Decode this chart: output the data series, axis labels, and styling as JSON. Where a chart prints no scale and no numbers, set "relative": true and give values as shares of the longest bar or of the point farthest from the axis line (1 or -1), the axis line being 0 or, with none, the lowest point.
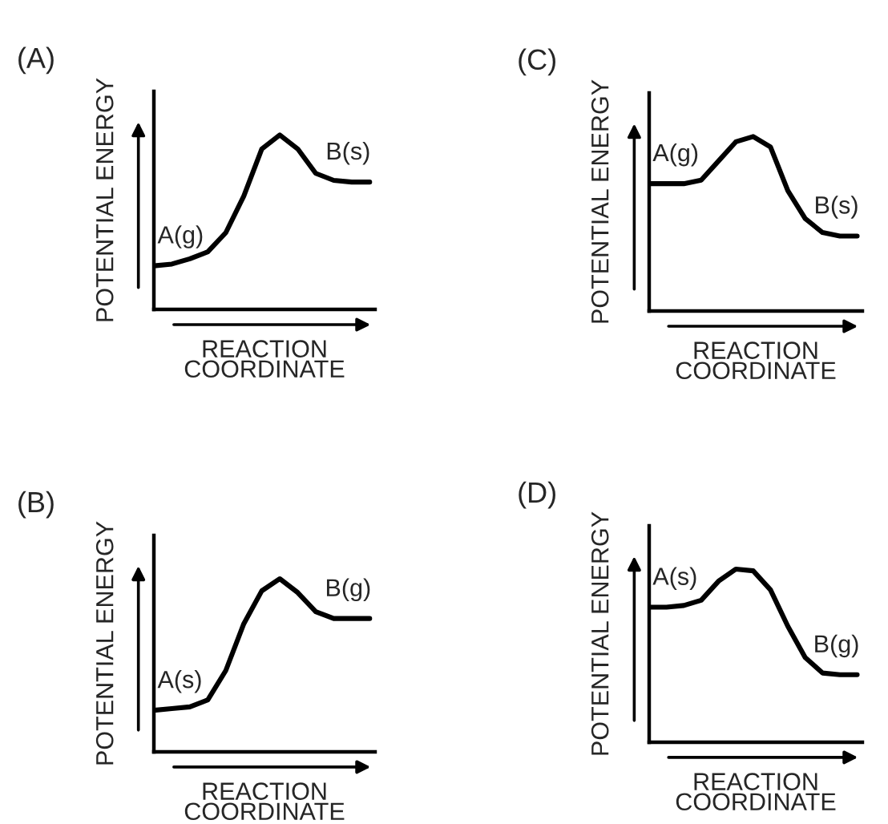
{
  "chart_data": [
    {
      "type": "line",
      "title": "(A)",
      "xlabel": "REACTION\nCOORDINATE",
      "ylabel": "POTENTIAL ENERGY",
      "relative": true,
      "color": "#000000",
      "annotations": [
        "A(g)",
        "B(s)"
      ],
      "categories": [
        null,
        null,
        null,
        null,
        null,
        null,
        null,
        null,
        null,
        null,
        null,
        null,
        null
      ],
      "values": [
        0.25,
        0.26,
        0.29,
        0.33,
        0.44,
        0.65,
        0.92,
        1,
        0.92,
        0.78,
        0.74,
        0.73,
        0.73
      ]
    },
    {
      "type": "line",
      "title": "(C)",
      "xlabel": "REACTION\nCOORDINATE",
      "ylabel": "POTENTIAL ENERGY",
      "relative": true,
      "color": "#000000",
      "annotations": [
        "A(g)",
        "B(s)"
      ],
      "categories": [
        null,
        null,
        null,
        null,
        null,
        null,
        null,
        null,
        null,
        null,
        null,
        null,
        null
      ],
      "values": [
        0.73,
        0.73,
        0.73,
        0.75,
        0.86,
        0.97,
        1,
        0.94,
        0.69,
        0.53,
        0.45,
        0.43,
        0.43
      ]
    },
    {
      "type": "line",
      "title": "(B)",
      "xlabel": "REACTION\nCOORDINATE",
      "ylabel": "POTENTIAL ENERGY",
      "relative": true,
      "color": "#000000",
      "annotations": [
        "A(s)",
        "B(g)"
      ],
      "categories": [
        null,
        null,
        null,
        null,
        null,
        null,
        null,
        null,
        null,
        null,
        null,
        null,
        null
      ],
      "values": [
        0.24,
        0.25,
        0.26,
        0.3,
        0.47,
        0.74,
        0.93,
        1,
        0.92,
        0.81,
        0.77,
        0.77,
        0.77
      ]
    },
    {
      "type": "line",
      "title": "(D)",
      "xlabel": "REACTION\nCOORDINATE",
      "ylabel": "POTENTIAL ENERGY",
      "relative": true,
      "color": "#000000",
      "annotations": [
        "A(s)",
        "B(g)"
      ],
      "categories": [
        null,
        null,
        null,
        null,
        null,
        null,
        null,
        null,
        null,
        null,
        null,
        null,
        null
      ],
      "values": [
        0.78,
        0.78,
        0.79,
        0.82,
        0.93,
        1,
        0.99,
        0.88,
        0.67,
        0.49,
        0.4,
        0.39,
        0.39
      ]
    }
  ]
}
